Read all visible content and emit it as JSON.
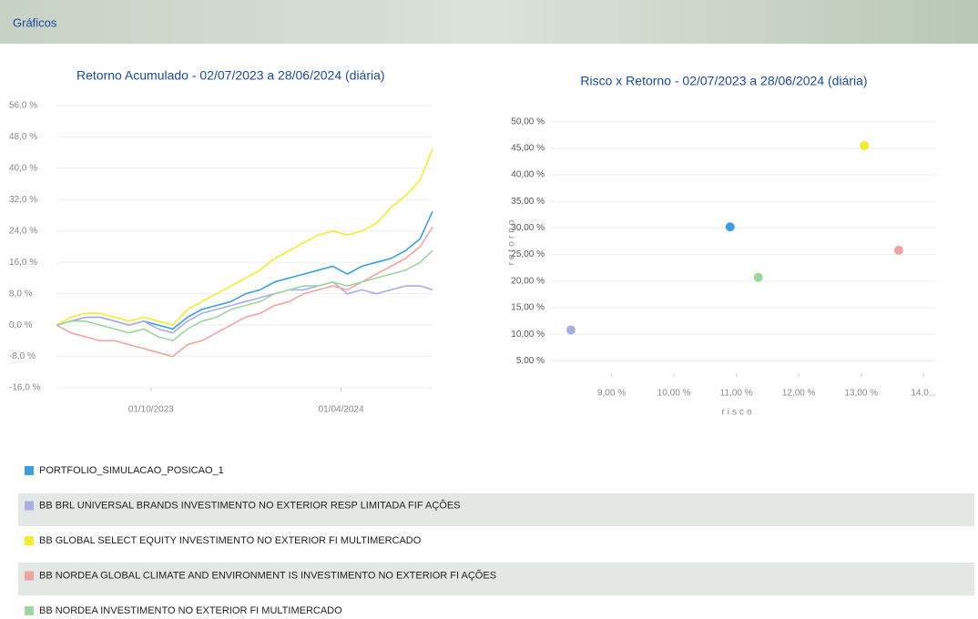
{
  "header": {
    "title": "Gráficos"
  },
  "chart_data": [
    {
      "type": "line",
      "title": "Retorno Acumulado - 02/07/2023 a 28/06/2024 (diária)",
      "x": [
        "02/07/2023",
        "16/07/2023",
        "30/07/2023",
        "13/08/2023",
        "27/08/2023",
        "10/09/2023",
        "24/09/2023",
        "08/10/2023",
        "22/10/2023",
        "05/11/2023",
        "19/11/2023",
        "03/12/2023",
        "17/12/2023",
        "31/12/2023",
        "14/01/2024",
        "28/01/2024",
        "11/02/2024",
        "25/02/2024",
        "10/03/2024",
        "24/03/2024",
        "07/04/2024",
        "21/04/2024",
        "05/05/2024",
        "19/05/2024",
        "02/06/2024",
        "16/06/2024",
        "28/06/2024"
      ],
      "xlim": [
        "02/07/2023",
        "28/06/2024"
      ],
      "xticks": [
        "01/10/2023",
        "01/04/2024"
      ],
      "ylim": [
        -16,
        56
      ],
      "yticks": [
        {
          "value": -16,
          "label": "-16,0 %"
        },
        {
          "value": -8,
          "label": "-8,0 %"
        },
        {
          "value": 0,
          "label": "0,0 %"
        },
        {
          "value": 8,
          "label": "8,0 %"
        },
        {
          "value": 16,
          "label": "16,0 %"
        },
        {
          "value": 24,
          "label": "24,0 %"
        },
        {
          "value": 32,
          "label": "32,0 %"
        },
        {
          "value": 40,
          "label": "40,0 %"
        },
        {
          "value": 48,
          "label": "48,0 %"
        },
        {
          "value": 56,
          "label": "56,0 %"
        }
      ],
      "grid": true,
      "series": [
        {
          "name": "PORTFOLIO_SIMULACAO_POSICAO_1",
          "color": "#3a9ee0",
          "values": [
            0,
            1,
            2,
            2,
            1,
            0,
            1,
            0,
            -1,
            2,
            4,
            5,
            6,
            8,
            9,
            11,
            12,
            13,
            14,
            15,
            13,
            15,
            16,
            17,
            19,
            22,
            29
          ]
        },
        {
          "name": "BB BRL UNIVERSAL BRANDS INVESTIMENTO NO EXTERIOR RESP LIMITADA FIF AÇÕES",
          "color": "#a9aee6",
          "values": [
            0,
            1,
            2,
            2,
            1,
            0,
            1,
            -1,
            -2,
            1,
            3,
            4,
            5,
            6,
            7,
            8,
            9,
            9,
            10,
            11,
            8,
            9,
            8,
            9,
            10,
            10,
            9
          ]
        },
        {
          "name": "BB GLOBAL SELECT EQUITY INVESTIMENTO NO EXTERIOR FI MULTIMERCADO",
          "color": "#f3ec2e",
          "values": [
            0,
            2,
            3,
            3,
            2,
            1,
            2,
            1,
            0,
            4,
            6,
            8,
            10,
            12,
            14,
            17,
            19,
            21,
            23,
            24,
            23,
            24,
            26,
            30,
            33,
            37,
            45
          ]
        },
        {
          "name": "BB NORDEA GLOBAL CLIMATE AND ENVIRONMENT IS INVESTIMENTO NO EXTERIOR FI AÇÕES",
          "color": "#f2a3a0",
          "values": [
            0,
            -2,
            -3,
            -4,
            -4,
            -5,
            -6,
            -7,
            -8,
            -5,
            -4,
            -2,
            0,
            2,
            3,
            5,
            6,
            8,
            9,
            10,
            9,
            11,
            13,
            15,
            17,
            20,
            25
          ]
        },
        {
          "name": "BB NORDEA INVESTIMENTO NO EXTERIOR FI MULTIMERCADO",
          "color": "#9fd69f",
          "values": [
            0,
            1,
            1,
            0,
            -1,
            -2,
            -1,
            -3,
            -4,
            -1,
            1,
            2,
            4,
            5,
            6,
            8,
            9,
            10,
            10,
            11,
            10,
            11,
            12,
            13,
            14,
            16,
            19
          ]
        }
      ]
    },
    {
      "type": "scatter",
      "title": "Risco x Retorno - 02/07/2023 a 28/06/2024 (diária)",
      "xlabel": "risco",
      "ylabel": "retorno",
      "xlim": [
        8.0,
        14.2
      ],
      "xticks": [
        {
          "value": 9,
          "label": "9,00 %"
        },
        {
          "value": 10,
          "label": "10,00 %"
        },
        {
          "value": 11,
          "label": "11,00 %"
        },
        {
          "value": 12,
          "label": "12,00 %"
        },
        {
          "value": 13,
          "label": "13,00 %"
        },
        {
          "value": 14,
          "label": "14,0..."
        }
      ],
      "ylim": [
        3,
        52
      ],
      "yticks": [
        {
          "value": 5,
          "label": "5,00 %"
        },
        {
          "value": 10,
          "label": "10,00 %"
        },
        {
          "value": 15,
          "label": "15,00 %"
        },
        {
          "value": 20,
          "label": "20,00 %"
        },
        {
          "value": 25,
          "label": "25,00 %"
        },
        {
          "value": 30,
          "label": "30,00 %"
        },
        {
          "value": 35,
          "label": "35,00 %"
        },
        {
          "value": 40,
          "label": "40,00 %"
        },
        {
          "value": 45,
          "label": "45,00 %"
        },
        {
          "value": 50,
          "label": "50,00 %"
        }
      ],
      "grid": true,
      "points": [
        {
          "x": 10.9,
          "y": 30.2,
          "color": "#3a9ee0"
        },
        {
          "x": 8.35,
          "y": 10.8,
          "color": "#a9aee6"
        },
        {
          "x": 13.05,
          "y": 45.5,
          "color": "#f3ec2e"
        },
        {
          "x": 13.6,
          "y": 25.8,
          "color": "#f2a3a0"
        },
        {
          "x": 11.35,
          "y": 20.7,
          "color": "#9fd69f"
        }
      ]
    }
  ]
}
